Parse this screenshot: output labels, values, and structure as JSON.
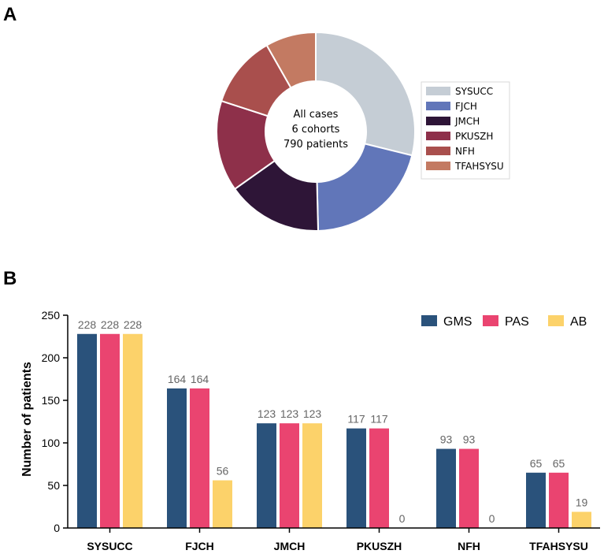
{
  "panels": {
    "a": "A",
    "b": "B"
  },
  "chart_data": [
    {
      "type": "pie",
      "variant": "donut",
      "center_text": [
        "All cases",
        "6 cohorts",
        "790 patients"
      ],
      "labels": [
        "SYSUCC",
        "FJCH",
        "JMCH",
        "PKUSZH",
        "NFH",
        "TFAHSYSU"
      ],
      "values": [
        228,
        164,
        123,
        117,
        93,
        65
      ],
      "colors": [
        "#c5cdd5",
        "#6176b9",
        "#2e1537",
        "#8e304a",
        "#a94f4d",
        "#c37a62"
      ],
      "legend": "right"
    },
    {
      "type": "bar",
      "ylabel": "Number of patients",
      "xlabel": "",
      "ylim": [
        0,
        250
      ],
      "yticks": [
        0,
        50,
        100,
        150,
        200,
        250
      ],
      "categories": [
        "SYSUCC",
        "FJCH",
        "JMCH",
        "PKUSZH",
        "NFH",
        "TFAHSYSU"
      ],
      "series": [
        {
          "name": "GMS",
          "color": "#2a527b",
          "values": [
            228,
            164,
            123,
            117,
            93,
            65
          ]
        },
        {
          "name": "PAS",
          "color": "#ea4470",
          "values": [
            228,
            164,
            123,
            117,
            93,
            65
          ]
        },
        {
          "name": "AB",
          "color": "#fcd26a",
          "values": [
            228,
            56,
            123,
            0,
            0,
            19
          ]
        }
      ],
      "legend": "top-right"
    }
  ]
}
